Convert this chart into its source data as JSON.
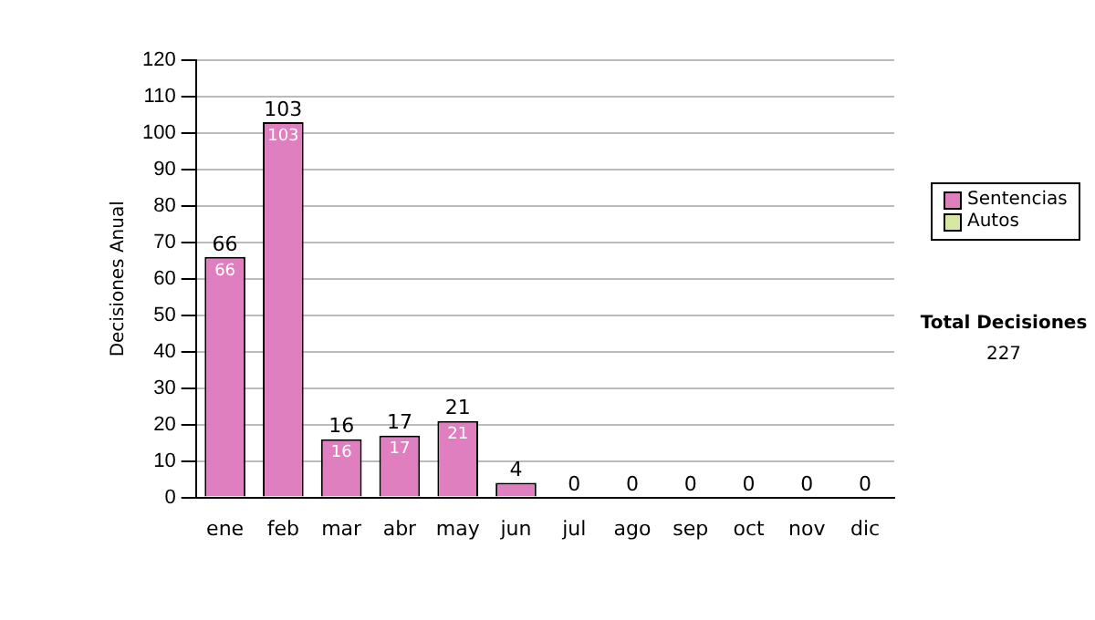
{
  "chart_data": {
    "type": "bar",
    "stacked": true,
    "ylabel": "Decisiones Anual",
    "categories": [
      "ene",
      "feb",
      "mar",
      "abr",
      "may",
      "jun",
      "jul",
      "ago",
      "sep",
      "oct",
      "nov",
      "dic"
    ],
    "series": [
      {
        "name": "Sentencias",
        "color": "#df7fbf",
        "values": [
          66,
          103,
          16,
          17,
          21,
          4,
          0,
          0,
          0,
          0,
          0,
          0
        ],
        "value_labels": [
          "66",
          "103",
          "16",
          "17",
          "21",
          null,
          null,
          null,
          null,
          null,
          null,
          null
        ]
      },
      {
        "name": "Autos",
        "color": "#d6e8a4",
        "values": [
          0,
          0,
          0,
          0,
          0,
          0,
          0,
          0,
          0,
          0,
          0,
          0
        ]
      }
    ],
    "totals": [
      "66",
      "103",
      "16",
      "17",
      "21",
      "4",
      "0",
      "0",
      "0",
      "0",
      "0",
      "0"
    ],
    "ylim": [
      0,
      120
    ],
    "yticks": [
      0,
      10,
      20,
      30,
      40,
      50,
      60,
      70,
      80,
      90,
      100,
      110,
      120
    ],
    "grid": "y",
    "legend": "right",
    "annotations": [
      "Total Decisiones",
      "227"
    ]
  }
}
